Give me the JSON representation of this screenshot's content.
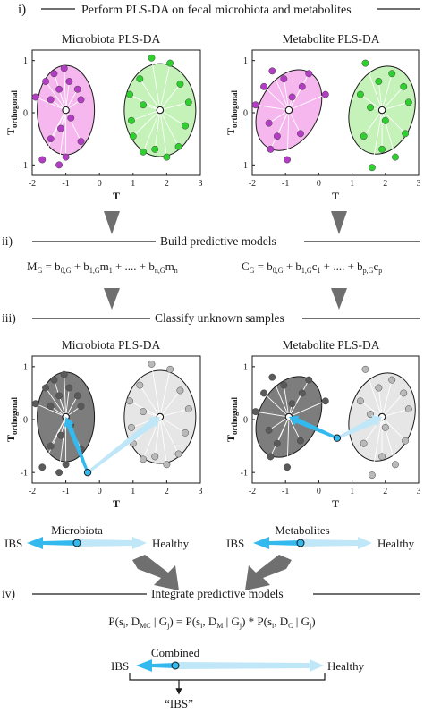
{
  "colors": {
    "micro_fill": "#f6b6ee",
    "micro_dot": "#b23cc4",
    "metab_fill": "#c4f2b8",
    "metab_dot": "#2fcf2f",
    "dark_fill": "#7d7d7d",
    "dark_dot": "#5a5a5a",
    "light_fill": "#e6e6e6",
    "light_dot": "#b9b9b9",
    "arrow_blue": "#33b9ee",
    "arrow_light": "#bfe7f8",
    "down_arrow": "#6f6f6f"
  },
  "sections": {
    "s1": {
      "numeral": "i)",
      "title": "Perform PLS-DA on fecal microbiota and metabolites"
    },
    "s2": {
      "numeral": "ii)",
      "title": "Build predictive models"
    },
    "s3": {
      "numeral": "iii)",
      "title": "Classify unknown samples"
    },
    "s4": {
      "numeral": "iv)",
      "title": "Integrate predictive models"
    }
  },
  "plots": {
    "p1": {
      "title": "Microbiota PLS-DA",
      "xlabel": "T",
      "ylabel_main": "T",
      "ylabel_sub": "orthogonal"
    },
    "p2": {
      "title": "Metabolite PLS-DA",
      "xlabel": "T",
      "ylabel_main": "T",
      "ylabel_sub": "orthogonal"
    },
    "p3": {
      "title": "Microbiota PLS-DA",
      "xlabel": "T",
      "ylabel_main": "T",
      "ylabel_sub": "orthogonal"
    },
    "p4": {
      "title": "Metabolite PLS-DA",
      "xlabel": "T",
      "ylabel_main": "T",
      "ylabel_sub": "orthogonal"
    },
    "x_ticks": [
      "-2",
      "-1",
      "0",
      "1",
      "2",
      "3"
    ],
    "y_ticks": [
      "1",
      "0",
      "-1"
    ]
  },
  "models": {
    "left": "M_G = b_0,G + b_1,G m_1 + .... + b_n,G m_n",
    "right": "C_G = b_0,G + b_1,G c_1 + .... + b_p,G c_p"
  },
  "classify": {
    "left_title": "Microbiota",
    "right_title": "Metabolites",
    "ibs": "IBS",
    "healthy": "Healthy"
  },
  "integrate": {
    "equation": "P(s_i, D_MC | G_j) = P(s_i, D_M | G_j) * P(s_i, D_C | G_j)",
    "combined": "Combined",
    "ibs": "IBS",
    "healthy": "Healthy",
    "result": "“IBS”"
  }
}
